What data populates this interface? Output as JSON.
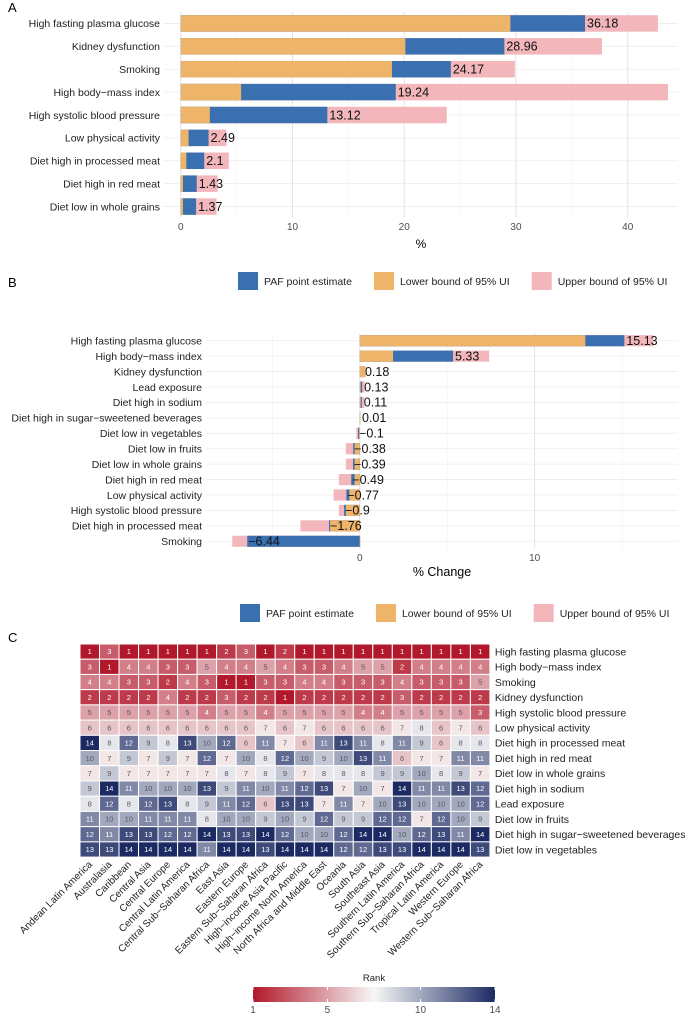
{
  "colors": {
    "lower": "#EDB46A",
    "pe": "#3A70B0",
    "upper": "#F2B6BB",
    "grid": "#e8e8e8",
    "axisText": "#4d4d4d",
    "heat_low": "#B2182B",
    "heat_mid": "#F7F7F7",
    "heat_high": "#1B2A63"
  },
  "chart_data": [
    {
      "panel": "A",
      "type": "bar",
      "orientation": "horizontal",
      "xlabel": "%",
      "xlim": [
        -1.5,
        44.5
      ],
      "xticks": [
        0,
        10,
        20,
        30,
        40
      ],
      "categories": [
        "High fasting plasma glucose",
        "Kidney dysfunction",
        "Smoking",
        "High body−mass index",
        "High systolic blood pressure",
        "Low physical activity",
        "Diet high in processed meat",
        "Diet high in red meat",
        "Diet low in whole grains"
      ],
      "series": [
        {
          "name": "Lower bound of 95% UI",
          "values": [
            29.5,
            20.1,
            18.9,
            5.4,
            2.6,
            0.7,
            0.5,
            0.2,
            0.2
          ]
        },
        {
          "name": "PAF point estimate",
          "values": [
            36.18,
            28.96,
            24.17,
            19.24,
            13.12,
            2.49,
            2.1,
            1.43,
            1.37
          ]
        },
        {
          "name": "Upper bound of 95% UI",
          "values": [
            42.7,
            37.7,
            29.9,
            43.6,
            23.8,
            4.1,
            4.3,
            3.3,
            3.2
          ]
        }
      ],
      "labels": [
        "36.18",
        "28.96",
        "24.17",
        "19.24",
        "13.12",
        "2.49",
        "2.1",
        "1.43",
        "1.37"
      ]
    },
    {
      "panel": "B",
      "type": "bar",
      "orientation": "horizontal",
      "xlabel": "% Change",
      "xlim": [
        -8.8,
        18.2
      ],
      "xticks": [
        0,
        10
      ],
      "categories": [
        "High fasting plasma glucose",
        "High body−mass index",
        "Kidney dysfunction",
        "Lead exposure",
        "Diet high in sodium",
        "Diet high in sugar−sweetened beverages",
        "Diet low in vegetables",
        "Diet low in fruits",
        "Diet low in whole grains",
        "Diet high in red meat",
        "Low physical activity",
        "High systolic blood pressure",
        "Diet high in processed meat",
        "Smoking"
      ],
      "series": [
        {
          "name": "Lower bound of 95% UI",
          "values": [
            12.9,
            1.9,
            0.3,
            0.05,
            0.05,
            0.005,
            -0.05,
            -0.3,
            -0.3,
            -0.3,
            -0.6,
            -0.8,
            -1.7,
            0
          ]
        },
        {
          "name": "PAF point estimate",
          "values": [
            15.13,
            5.33,
            0.18,
            0.13,
            0.11,
            0.01,
            -0.1,
            -0.38,
            -0.39,
            -0.49,
            -0.77,
            -0.9,
            -1.76,
            -6.44
          ]
        },
        {
          "name": "Upper bound of 95% UI",
          "values": [
            16.8,
            7.4,
            0.35,
            0.28,
            0.25,
            0.03,
            -0.2,
            -0.8,
            -0.8,
            -1.2,
            -1.5,
            -1.2,
            -3.4,
            -7.3
          ]
        }
      ],
      "labels": [
        "15.13",
        "5.33",
        "0.18",
        "0.13",
        "0.11",
        "0.01",
        "−0.1",
        "−0.38",
        "−0.39",
        "−0.49",
        "−0.77",
        "−0.9",
        "−1.76",
        "−6.44"
      ]
    },
    {
      "panel": "C",
      "type": "heatmap",
      "colorbar_title": "Rank",
      "colorbar_ticks": [
        1,
        5,
        10,
        14
      ],
      "risks": [
        "High fasting plasma glucose",
        "High body−mass index",
        "Smoking",
        "Kidney dysfunction",
        "High systolic blood pressure",
        "Low physical activity",
        "Diet high in processed meat",
        "Diet high in red meat",
        "Diet low in whole grains",
        "Diet high in sodium",
        "Lead exposure",
        "Diet low in fruits",
        "Diet high in sugar−sweetened beverages",
        "Diet low in vegetables"
      ],
      "regions": [
        "Andean Latin America",
        "Australasia",
        "Caribbean",
        "Central Asia",
        "Central Europe",
        "Central Latin America",
        "Central Sub−Saharan Africa",
        "East Asia",
        "Eastern Europe",
        "Eastern Sub−Saharan Africa",
        "High−income Asia Pacific",
        "High−income North America",
        "North Africa and Middle East",
        "Oceania",
        "South Asia",
        "Southeast Asia",
        "Southern Latin America",
        "Southern Sub−Saharan Africa",
        "Tropical Latin America",
        "Western Europe",
        "Western Sub−Saharan Africa"
      ],
      "values": [
        [
          1,
          3,
          1,
          1,
          1,
          1,
          1,
          2,
          3,
          1,
          2,
          1,
          1,
          1,
          1,
          1,
          1,
          1,
          1,
          1,
          1
        ],
        [
          3,
          1,
          4,
          4,
          3,
          3,
          5,
          4,
          4,
          5,
          4,
          3,
          3,
          4,
          5,
          5,
          2,
          4,
          4,
          4,
          4
        ],
        [
          4,
          4,
          3,
          3,
          2,
          4,
          3,
          1,
          1,
          3,
          3,
          4,
          4,
          3,
          3,
          3,
          4,
          3,
          3,
          3,
          5
        ],
        [
          2,
          2,
          2,
          2,
          4,
          2,
          2,
          3,
          2,
          2,
          1,
          2,
          2,
          2,
          2,
          2,
          3,
          2,
          2,
          2,
          2
        ],
        [
          5,
          5,
          5,
          5,
          5,
          5,
          4,
          5,
          5,
          4,
          5,
          5,
          5,
          5,
          4,
          4,
          5,
          5,
          5,
          5,
          3
        ],
        [
          6,
          6,
          6,
          6,
          6,
          6,
          6,
          6,
          6,
          7,
          6,
          7,
          6,
          6,
          6,
          6,
          7,
          8,
          6,
          7,
          6
        ],
        [
          14,
          8,
          12,
          9,
          8,
          13,
          10,
          12,
          6,
          11,
          7,
          6,
          11,
          13,
          11,
          8,
          11,
          9,
          6,
          8,
          8
        ],
        [
          10,
          7,
          9,
          7,
          9,
          7,
          12,
          7,
          10,
          8,
          12,
          10,
          9,
          10,
          13,
          11,
          6,
          7,
          7,
          11,
          11
        ],
        [
          7,
          9,
          7,
          7,
          7,
          7,
          7,
          8,
          7,
          8,
          9,
          7,
          8,
          8,
          8,
          9,
          9,
          10,
          8,
          9,
          7
        ],
        [
          9,
          14,
          11,
          10,
          10,
          10,
          13,
          9,
          11,
          10,
          11,
          12,
          13,
          7,
          10,
          7,
          14,
          11,
          11,
          13,
          12
        ],
        [
          8,
          12,
          8,
          12,
          13,
          8,
          9,
          11,
          12,
          6,
          13,
          13,
          7,
          11,
          7,
          10,
          13,
          10,
          10,
          10,
          12
        ],
        [
          11,
          10,
          10,
          11,
          11,
          11,
          8,
          10,
          10,
          9,
          10,
          9,
          12,
          9,
          9,
          12,
          12,
          7,
          12,
          10,
          9
        ],
        [
          12,
          11,
          13,
          13,
          12,
          12,
          14,
          13,
          13,
          14,
          12,
          10,
          10,
          12,
          14,
          14,
          10,
          12,
          13,
          11,
          14
        ],
        [
          13,
          13,
          14,
          14,
          14,
          14,
          11,
          14,
          14,
          13,
          14,
          14,
          14,
          12,
          12,
          13,
          13,
          14,
          14,
          14,
          13
        ]
      ]
    }
  ],
  "panels": {
    "a_letter": "A",
    "b_letter": "B",
    "c_letter": "C"
  },
  "legend": {
    "pe": "PAF point estimate",
    "lower": "Lower bound of 95% UI",
    "upper": "Upper bound of 95% UI"
  }
}
